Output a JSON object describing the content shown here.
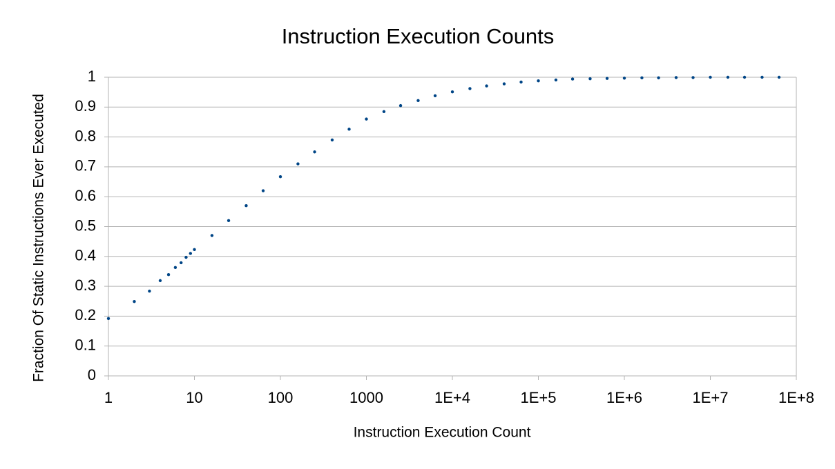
{
  "chart_data": {
    "type": "scatter",
    "title": "Instruction Execution Counts",
    "xlabel": "Instruction Execution Count",
    "ylabel": "Fraction Of Static Instructions Ever Executed",
    "xscale": "log",
    "grid": true,
    "color": "#004586",
    "xlim": [
      1,
      100000000
    ],
    "ylim": [
      0,
      1
    ],
    "xticks": [
      1,
      10,
      100,
      1000,
      {
        "value": 10000,
        "label": "1E+4"
      },
      {
        "value": 100000,
        "label": "1E+5"
      },
      {
        "value": 1000000,
        "label": "1E+6"
      },
      {
        "value": 10000000,
        "label": "1E+7"
      },
      {
        "value": 100000000,
        "label": "1E+8"
      }
    ],
    "yticks": [
      0,
      0.1,
      0.2,
      0.3,
      0.4,
      0.5,
      0.6,
      0.7,
      0.8,
      0.9,
      1
    ],
    "x": [
      1,
      2,
      3,
      4,
      5,
      6,
      7,
      8,
      9,
      10,
      16,
      25,
      40,
      63,
      100,
      160,
      250,
      400,
      630,
      1000,
      1600,
      2500,
      4000,
      6300,
      10000,
      16000,
      25000,
      40000,
      63000,
      100000,
      160000,
      250000,
      400000,
      630000,
      1000000,
      1600000,
      2500000,
      4000000,
      6300000,
      10000000,
      16000000,
      25000000,
      40000000,
      63000000
    ],
    "values": [
      0.192,
      0.249,
      0.284,
      0.319,
      0.339,
      0.363,
      0.379,
      0.397,
      0.41,
      0.423,
      0.47,
      0.52,
      0.57,
      0.62,
      0.667,
      0.71,
      0.75,
      0.79,
      0.826,
      0.86,
      0.885,
      0.905,
      0.922,
      0.938,
      0.951,
      0.962,
      0.971,
      0.978,
      0.984,
      0.988,
      0.991,
      0.994,
      0.995,
      0.996,
      0.997,
      0.998,
      0.998,
      0.999,
      0.999,
      1,
      1,
      1,
      1,
      1
    ]
  }
}
